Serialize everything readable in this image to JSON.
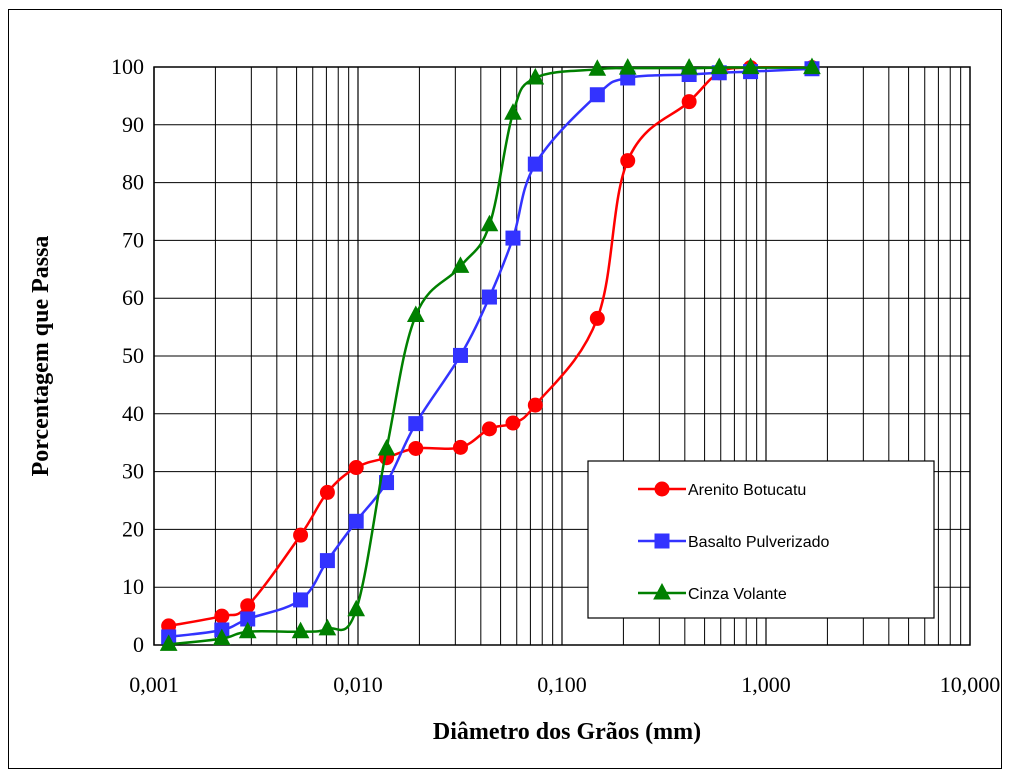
{
  "chart_data": {
    "type": "line",
    "x_scale": "log",
    "xlabel": "Diâmetro dos Grãos (mm)",
    "ylabel": "Porcentagem que Passa",
    "xlim": [
      0.001,
      10
    ],
    "ylim": [
      0,
      100
    ],
    "x_ticks": [
      0.001,
      0.01,
      0.1,
      1,
      10
    ],
    "x_tick_labels": [
      "0,001",
      "0,010",
      "0,100",
      "1,000",
      "10,000"
    ],
    "y_ticks": [
      0,
      10,
      20,
      30,
      40,
      50,
      60,
      70,
      80,
      90,
      100
    ],
    "y_tick_labels": [
      "0",
      "10",
      "20",
      "30",
      "40",
      "50",
      "60",
      "70",
      "80",
      "90",
      "100"
    ],
    "grid": true,
    "legend_position": "lower-right",
    "series": [
      {
        "name": "Arenito Botucatu",
        "color": "#ff0000",
        "marker": "circle",
        "points": [
          [
            0.00118,
            3.3
          ],
          [
            0.00215,
            5.0
          ],
          [
            0.00288,
            6.8
          ],
          [
            0.00523,
            19.0
          ],
          [
            0.00708,
            26.4
          ],
          [
            0.0098,
            30.7
          ],
          [
            0.0138,
            32.4
          ],
          [
            0.0192,
            34.0
          ],
          [
            0.0318,
            34.2
          ],
          [
            0.0441,
            37.4
          ],
          [
            0.0575,
            38.4
          ],
          [
            0.074,
            41.5
          ],
          [
            0.149,
            56.5
          ],
          [
            0.21,
            83.8
          ],
          [
            0.42,
            94.0
          ],
          [
            0.59,
            99.0
          ],
          [
            0.84,
            99.9
          ],
          [
            1.68,
            99.9
          ]
        ]
      },
      {
        "name": "Basalto Pulverizado",
        "color": "#3333ff",
        "marker": "square",
        "points": [
          [
            0.00118,
            1.4
          ],
          [
            0.00215,
            2.6
          ],
          [
            0.00288,
            4.5
          ],
          [
            0.00523,
            7.8
          ],
          [
            0.00708,
            14.6
          ],
          [
            0.0098,
            21.4
          ],
          [
            0.0138,
            28.1
          ],
          [
            0.0192,
            38.3
          ],
          [
            0.0318,
            50.1
          ],
          [
            0.0441,
            60.2
          ],
          [
            0.0575,
            70.4
          ],
          [
            0.074,
            83.2
          ],
          [
            0.149,
            95.2
          ],
          [
            0.21,
            98.1
          ],
          [
            0.42,
            98.7
          ],
          [
            0.59,
            99.0
          ],
          [
            0.84,
            99.2
          ],
          [
            1.68,
            99.7
          ]
        ]
      },
      {
        "name": "Cinza Volante",
        "color": "#008000",
        "marker": "triangle",
        "points": [
          [
            0.00118,
            0.1
          ],
          [
            0.00215,
            1.1
          ],
          [
            0.00288,
            2.3
          ],
          [
            0.00523,
            2.3
          ],
          [
            0.00708,
            2.8
          ],
          [
            0.0098,
            6.1
          ],
          [
            0.0138,
            33.9
          ],
          [
            0.0192,
            57.0
          ],
          [
            0.0318,
            65.5
          ],
          [
            0.0441,
            72.7
          ],
          [
            0.0575,
            92.0
          ],
          [
            0.074,
            98.1
          ],
          [
            0.149,
            99.6
          ],
          [
            0.21,
            99.8
          ],
          [
            0.42,
            99.8
          ],
          [
            0.59,
            99.9
          ],
          [
            0.84,
            99.9
          ],
          [
            1.68,
            99.9
          ]
        ]
      }
    ]
  }
}
